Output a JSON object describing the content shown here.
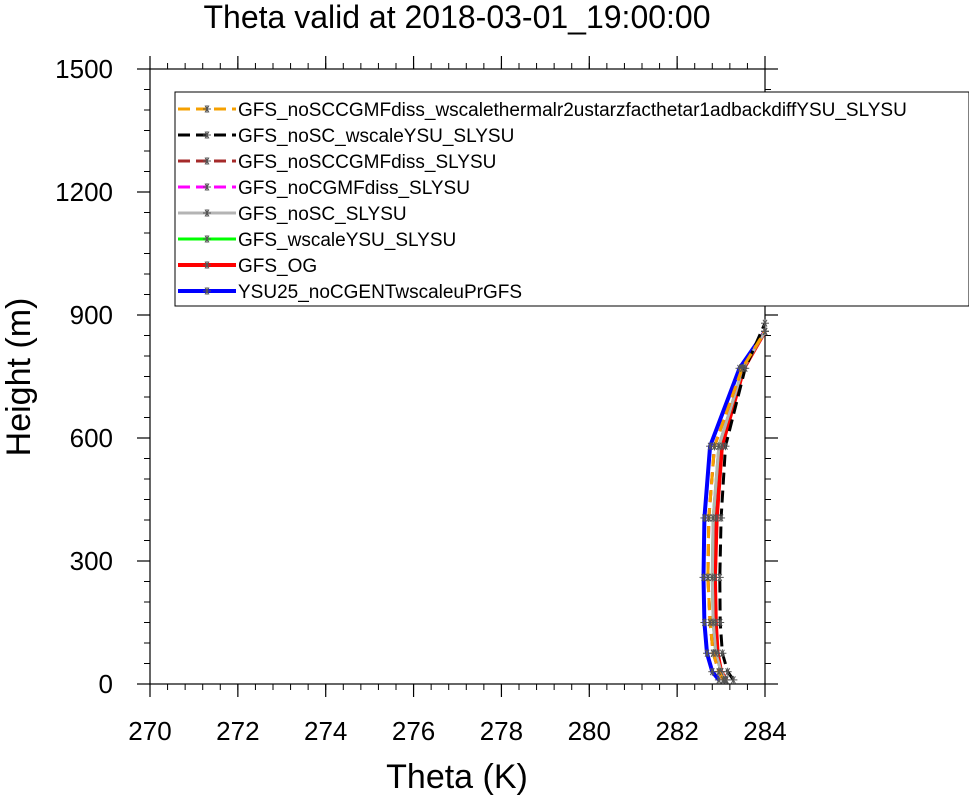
{
  "chart_data": {
    "type": "line",
    "title": "Theta valid at 2018-03-01_19:00:00",
    "xlabel": "Theta (K)",
    "ylabel": "Height (m)",
    "xlim": [
      270,
      284
    ],
    "ylim": [
      0,
      1500
    ],
    "xticks": [
      "270",
      "272",
      "274",
      "276",
      "278",
      "280",
      "282",
      "284"
    ],
    "yticks": [
      "0",
      "300",
      "600",
      "900",
      "1200",
      "1500"
    ],
    "xtick_values": [
      270,
      272,
      274,
      276,
      278,
      280,
      282,
      284
    ],
    "ytick_values": [
      0,
      300,
      600,
      900,
      1200,
      1500
    ],
    "grid": false,
    "legend_position": "top",
    "series": [
      {
        "name": "GFS_noSCCGMFdiss_wscalethermalr2ustarzfacthetar1adbackdiffYSU_SLYSU",
        "color": "#f5a000",
        "dash": "dash",
        "marker": "*",
        "points": [
          [
            283.05,
            10
          ],
          [
            282.95,
            30
          ],
          [
            282.82,
            75
          ],
          [
            282.75,
            150
          ],
          [
            282.7,
            260
          ],
          [
            282.72,
            405
          ],
          [
            282.85,
            580
          ],
          [
            283.48,
            770
          ],
          [
            284.0,
            860
          ]
        ]
      },
      {
        "name": "GFS_noSC_wscaleYSU_SLYSU",
        "color": "#000000",
        "dash": "dash",
        "marker": "*",
        "points": [
          [
            283.28,
            10
          ],
          [
            283.15,
            30
          ],
          [
            283.03,
            75
          ],
          [
            282.98,
            150
          ],
          [
            282.97,
            260
          ],
          [
            283.0,
            405
          ],
          [
            283.1,
            580
          ],
          [
            283.55,
            770
          ],
          [
            284.0,
            880
          ]
        ]
      },
      {
        "name": "GFS_noSCCGMFdiss_SLYSU",
        "color": "#a52a2a",
        "dash": "dash",
        "marker": "*",
        "points": [
          [
            283.05,
            10
          ],
          [
            282.95,
            30
          ],
          [
            282.82,
            75
          ],
          [
            282.75,
            150
          ],
          [
            282.7,
            260
          ],
          [
            282.72,
            405
          ],
          [
            282.85,
            580
          ],
          [
            283.48,
            770
          ],
          [
            284.0,
            860
          ]
        ]
      },
      {
        "name": "GFS_noCGMFdiss_SLYSU",
        "color": "#ff00ff",
        "dash": "dash",
        "marker": "*",
        "points": [
          [
            283.05,
            10
          ],
          [
            282.95,
            30
          ],
          [
            282.82,
            75
          ],
          [
            282.75,
            150
          ],
          [
            282.7,
            260
          ],
          [
            282.72,
            405
          ],
          [
            282.85,
            580
          ],
          [
            283.48,
            770
          ],
          [
            284.0,
            860
          ]
        ]
      },
      {
        "name": "GFS_noSC_SLYSU",
        "color": "#b4b4b4",
        "dash": "solid",
        "marker": "*",
        "points": [
          [
            283.1,
            10
          ],
          [
            283.0,
            30
          ],
          [
            282.88,
            75
          ],
          [
            282.82,
            150
          ],
          [
            282.8,
            260
          ],
          [
            282.82,
            405
          ],
          [
            282.95,
            580
          ],
          [
            283.5,
            770
          ],
          [
            284.0,
            860
          ]
        ]
      },
      {
        "name": "GFS_wscaleYSU_SLYSU",
        "color": "#00ff00",
        "dash": "solid",
        "marker": "*",
        "points": [
          [
            283.1,
            10
          ],
          [
            283.0,
            30
          ],
          [
            282.88,
            75
          ],
          [
            282.82,
            150
          ],
          [
            282.8,
            260
          ],
          [
            282.82,
            405
          ],
          [
            282.95,
            580
          ],
          [
            283.5,
            770
          ],
          [
            284.0,
            860
          ]
        ]
      },
      {
        "name": "GFS_OG",
        "color": "#ff0000",
        "dash": "solid",
        "marker": "*",
        "points": [
          [
            283.12,
            10
          ],
          [
            283.0,
            30
          ],
          [
            282.92,
            75
          ],
          [
            282.88,
            150
          ],
          [
            282.86,
            260
          ],
          [
            282.9,
            405
          ],
          [
            283.02,
            580
          ],
          [
            283.52,
            770
          ],
          [
            284.0,
            860
          ]
        ]
      },
      {
        "name": "YSU25_noCGENTwscaleuPrGFS",
        "color": "#0000ff",
        "dash": "solid",
        "marker": "*",
        "points": [
          [
            282.95,
            10
          ],
          [
            282.8,
            30
          ],
          [
            282.68,
            75
          ],
          [
            282.62,
            150
          ],
          [
            282.6,
            260
          ],
          [
            282.62,
            405
          ],
          [
            282.75,
            580
          ],
          [
            283.42,
            770
          ],
          [
            284.0,
            860
          ]
        ]
      }
    ]
  }
}
